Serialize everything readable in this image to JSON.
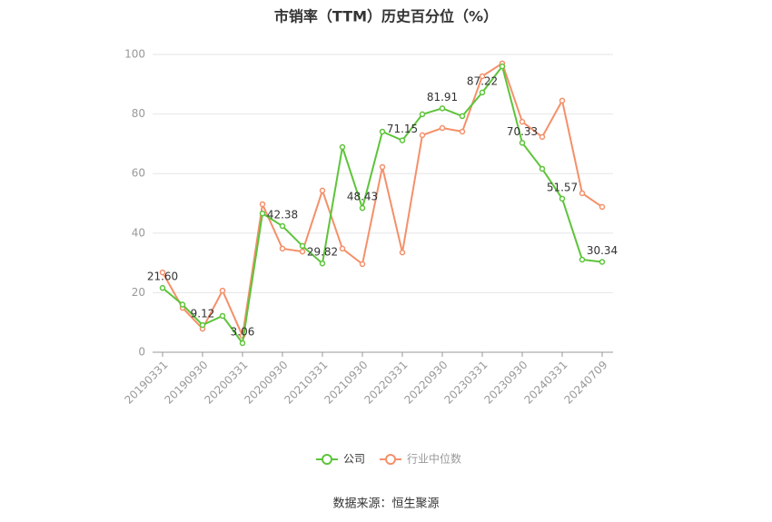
{
  "chart_data": {
    "type": "line",
    "title": "市销率（TTM）历史百分位（%）",
    "categories": [
      "20190331",
      null,
      "20190930",
      null,
      "20200331",
      null,
      "20200930",
      null,
      "20210331",
      null,
      "20210930",
      null,
      "20220331",
      null,
      "20220930",
      null,
      "20230331",
      null,
      "20230930",
      null,
      "20240331",
      null,
      "20240709"
    ],
    "series": [
      {
        "name": "公司",
        "color": "#5dc43a",
        "values": [
          21.6,
          16,
          9.12,
          12.2,
          3.06,
          46.6,
          42.38,
          35.7,
          29.82,
          68.9,
          48.43,
          74.1,
          71.15,
          79.9,
          81.91,
          79.3,
          87.22,
          96,
          70.33,
          61.6,
          51.57,
          31.1,
          30.34
        ],
        "value_labels": [
          "21.60",
          null,
          "9.12",
          null,
          "3.06",
          null,
          "42.38",
          null,
          "29.82",
          null,
          "48.43",
          null,
          "71.15",
          null,
          "81.91",
          null,
          "87.22",
          null,
          "70.33",
          null,
          "51.57",
          null,
          "30.34"
        ]
      },
      {
        "name": "行业中位数",
        "color": "#f4906a",
        "values": [
          26.8,
          14.9,
          7.9,
          20.7,
          5.5,
          49.7,
          34.8,
          33.8,
          54.3,
          34.8,
          29.6,
          62.2,
          33.5,
          72.9,
          75.3,
          74.1,
          92.7,
          97,
          77.4,
          72.3,
          84.5,
          53.4,
          48.8
        ]
      }
    ],
    "ylim": [
      0,
      100
    ],
    "yticks": [
      0,
      20,
      40,
      60,
      80,
      100
    ],
    "grid": true,
    "legend": "bottom",
    "source": "数据来源：恒生聚源"
  }
}
